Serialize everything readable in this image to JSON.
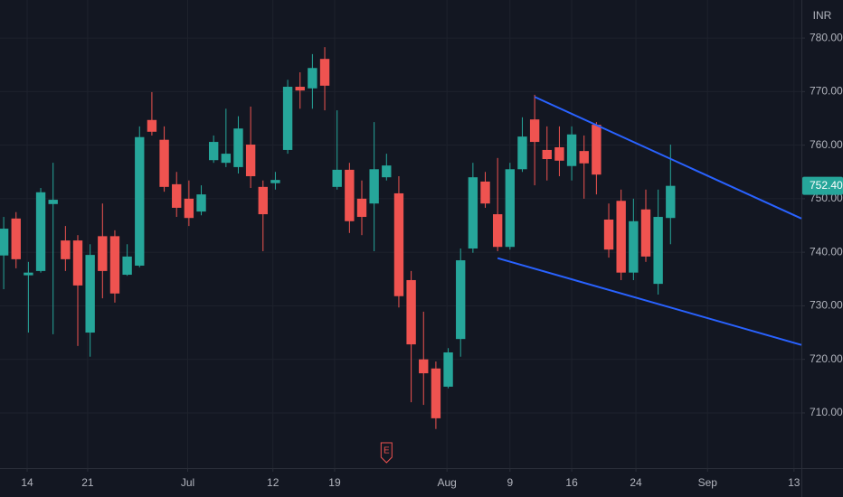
{
  "chart_data": {
    "type": "candlestick",
    "currency": "INR",
    "x": [
      0,
      1,
      2,
      3,
      4,
      5,
      6,
      7,
      8,
      9,
      10,
      11,
      12,
      13,
      14,
      15,
      16,
      17,
      18,
      19,
      20,
      21,
      22,
      23,
      24,
      25,
      26,
      27,
      28,
      29,
      30,
      31,
      32,
      33,
      34,
      35,
      36,
      37,
      38,
      39,
      40,
      41,
      42,
      43,
      44,
      45,
      46,
      47,
      48,
      49,
      50,
      51,
      52,
      53,
      54
    ],
    "open": [
      739.4,
      746.3,
      735.7,
      736.5,
      749.0,
      742.2,
      742.2,
      725.0,
      743.0,
      743.0,
      735.8,
      737.5,
      764.7,
      761.0,
      752.7,
      750.0,
      747.6,
      757.2,
      756.7,
      755.9,
      760.1,
      752.2,
      752.9,
      759.1,
      770.9,
      770.6,
      776.1,
      752.2,
      755.4,
      750.0,
      749.1,
      754.0,
      751.0,
      734.8,
      720.0,
      718.3,
      714.9,
      723.8,
      740.7,
      753.2,
      747.1,
      741.0,
      755.5,
      764.8,
      759.1,
      759.6,
      756.1,
      758.9,
      763.8,
      746.1,
      749.6,
      736.2,
      748.0,
      734.1,
      746.4
    ],
    "high": [
      746.6,
      747.5,
      738.2,
      752.0,
      756.7,
      744.9,
      743.2,
      741.5,
      749.1,
      744.1,
      741.5,
      763.5,
      769.9,
      763.5,
      755.0,
      753.4,
      752.5,
      761.8,
      766.8,
      765.4,
      767.2,
      753.4,
      755.0,
      772.2,
      773.6,
      777.0,
      778.3,
      766.5,
      756.7,
      753.4,
      764.3,
      758.4,
      754.2,
      736.5,
      728.9,
      719.6,
      722.1,
      740.7,
      756.7,
      755.0,
      757.6,
      756.7,
      765.2,
      769.4,
      763.5,
      763.5,
      763.5,
      761.8,
      764.3,
      749.1,
      751.7,
      750.0,
      751.7,
      751.7,
      760.1
    ],
    "low": [
      733.1,
      737.0,
      725.0,
      736.2,
      724.7,
      736.5,
      722.5,
      720.5,
      731.4,
      730.6,
      735.6,
      737.2,
      761.8,
      751.3,
      746.6,
      744.9,
      746.9,
      756.7,
      755.9,
      754.7,
      752.0,
      740.2,
      751.7,
      758.4,
      766.8,
      766.8,
      766.5,
      751.7,
      743.6,
      743.2,
      740.2,
      753.4,
      729.7,
      712.0,
      711.5,
      707.0,
      714.6,
      720.5,
      739.9,
      748.3,
      740.2,
      740.5,
      755.0,
      752.5,
      753.4,
      754.2,
      753.4,
      750.0,
      750.8,
      739.0,
      734.8,
      734.8,
      738.2,
      732.1,
      741.5
    ],
    "close": [
      744.4,
      738.7,
      736.2,
      751.2,
      749.8,
      738.7,
      733.8,
      739.5,
      736.5,
      732.3,
      739.2,
      761.5,
      762.5,
      752.2,
      748.3,
      746.4,
      750.8,
      760.6,
      758.4,
      763.1,
      754.2,
      747.1,
      753.5,
      770.9,
      770.2,
      774.4,
      771.1,
      755.4,
      745.8,
      746.6,
      755.5,
      756.2,
      731.8,
      722.8,
      717.4,
      709.0,
      721.3,
      738.5,
      754.0,
      749.1,
      741.0,
      755.5,
      761.6,
      760.6,
      757.4,
      757.1,
      762.0,
      756.6,
      754.5,
      740.5,
      736.2,
      745.8,
      739.2,
      746.6,
      752.4
    ],
    "up_color": "#26a69a",
    "down_color": "#ef5350",
    "xlim": [
      -0.3,
      64.6
    ],
    "xticks": [
      {
        "value": 1.9,
        "label": "14"
      },
      {
        "value": 6.8,
        "label": "21"
      },
      {
        "value": 14.9,
        "label": "Jul"
      },
      {
        "value": 21.8,
        "label": "12"
      },
      {
        "value": 26.8,
        "label": "19"
      },
      {
        "value": 35.9,
        "label": "Aug"
      },
      {
        "value": 41.0,
        "label": "9"
      },
      {
        "value": 46.0,
        "label": "16"
      },
      {
        "value": 51.2,
        "label": "24"
      },
      {
        "value": 57.0,
        "label": "Sep"
      },
      {
        "value": 64.0,
        "label": "13"
      }
    ],
    "ylim": [
      699.7,
      787.1
    ],
    "yticks": [
      {
        "value": 710,
        "label": "710.00"
      },
      {
        "value": 720,
        "label": "720.00"
      },
      {
        "value": 730,
        "label": "730.00"
      },
      {
        "value": 740,
        "label": "740.00"
      },
      {
        "value": 750,
        "label": "750.00"
      },
      {
        "value": 760,
        "label": "760.00"
      },
      {
        "value": 770,
        "label": "770.00"
      },
      {
        "value": 780,
        "label": "780.00"
      }
    ],
    "grid": true,
    "last_price": {
      "value": 752.4,
      "label": "752.40"
    },
    "trendlines": [
      {
        "color": "#2962ff",
        "x": [
          43,
          64.6
        ],
        "y": [
          769.0,
          746.3
        ]
      },
      {
        "color": "#2962ff",
        "x": [
          40,
          64.6
        ],
        "y": [
          738.9,
          722.7
        ]
      }
    ],
    "event_marker": {
      "x": 31,
      "label": "E"
    }
  }
}
